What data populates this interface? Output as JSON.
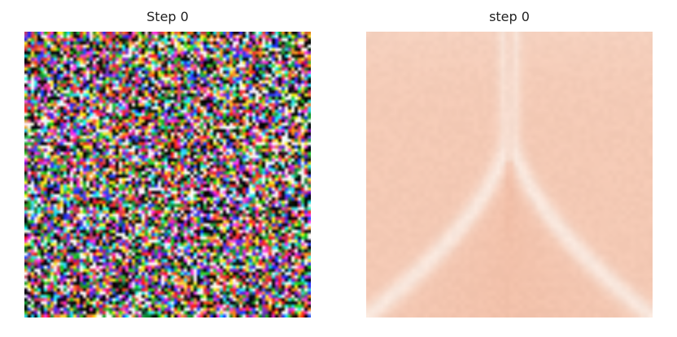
{
  "panels": [
    {
      "title": "Step 0"
    },
    {
      "title": "step 0"
    }
  ],
  "images": {
    "noise": {
      "description_icon": "random-color-noise-image",
      "grid": 88
    },
    "field": {
      "description_icon": "peach-gradient-field-image",
      "grid": 64,
      "base_color": "#f4c9b4",
      "light_color": "#f8e6dc",
      "dark_color": "#f0b79e"
    }
  }
}
